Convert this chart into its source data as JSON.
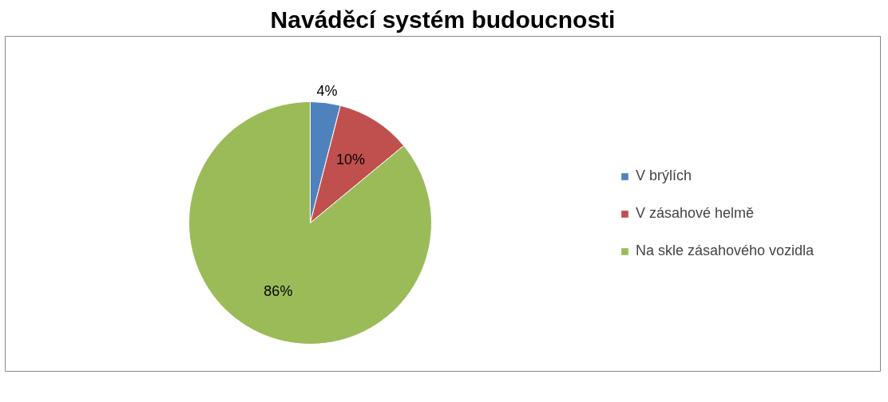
{
  "chart_data": {
    "type": "pie",
    "title": "Naváděcí systém budoucnosti",
    "categories": [
      "V brýlích",
      "V zásahové helmě",
      "Na skle zásahového vozidla"
    ],
    "values": [
      4,
      10,
      86
    ],
    "colors": [
      "#4f81bd",
      "#c0504d",
      "#9bbb59"
    ],
    "value_labels": [
      "4%",
      "10%",
      "86%"
    ],
    "legend": "right"
  }
}
